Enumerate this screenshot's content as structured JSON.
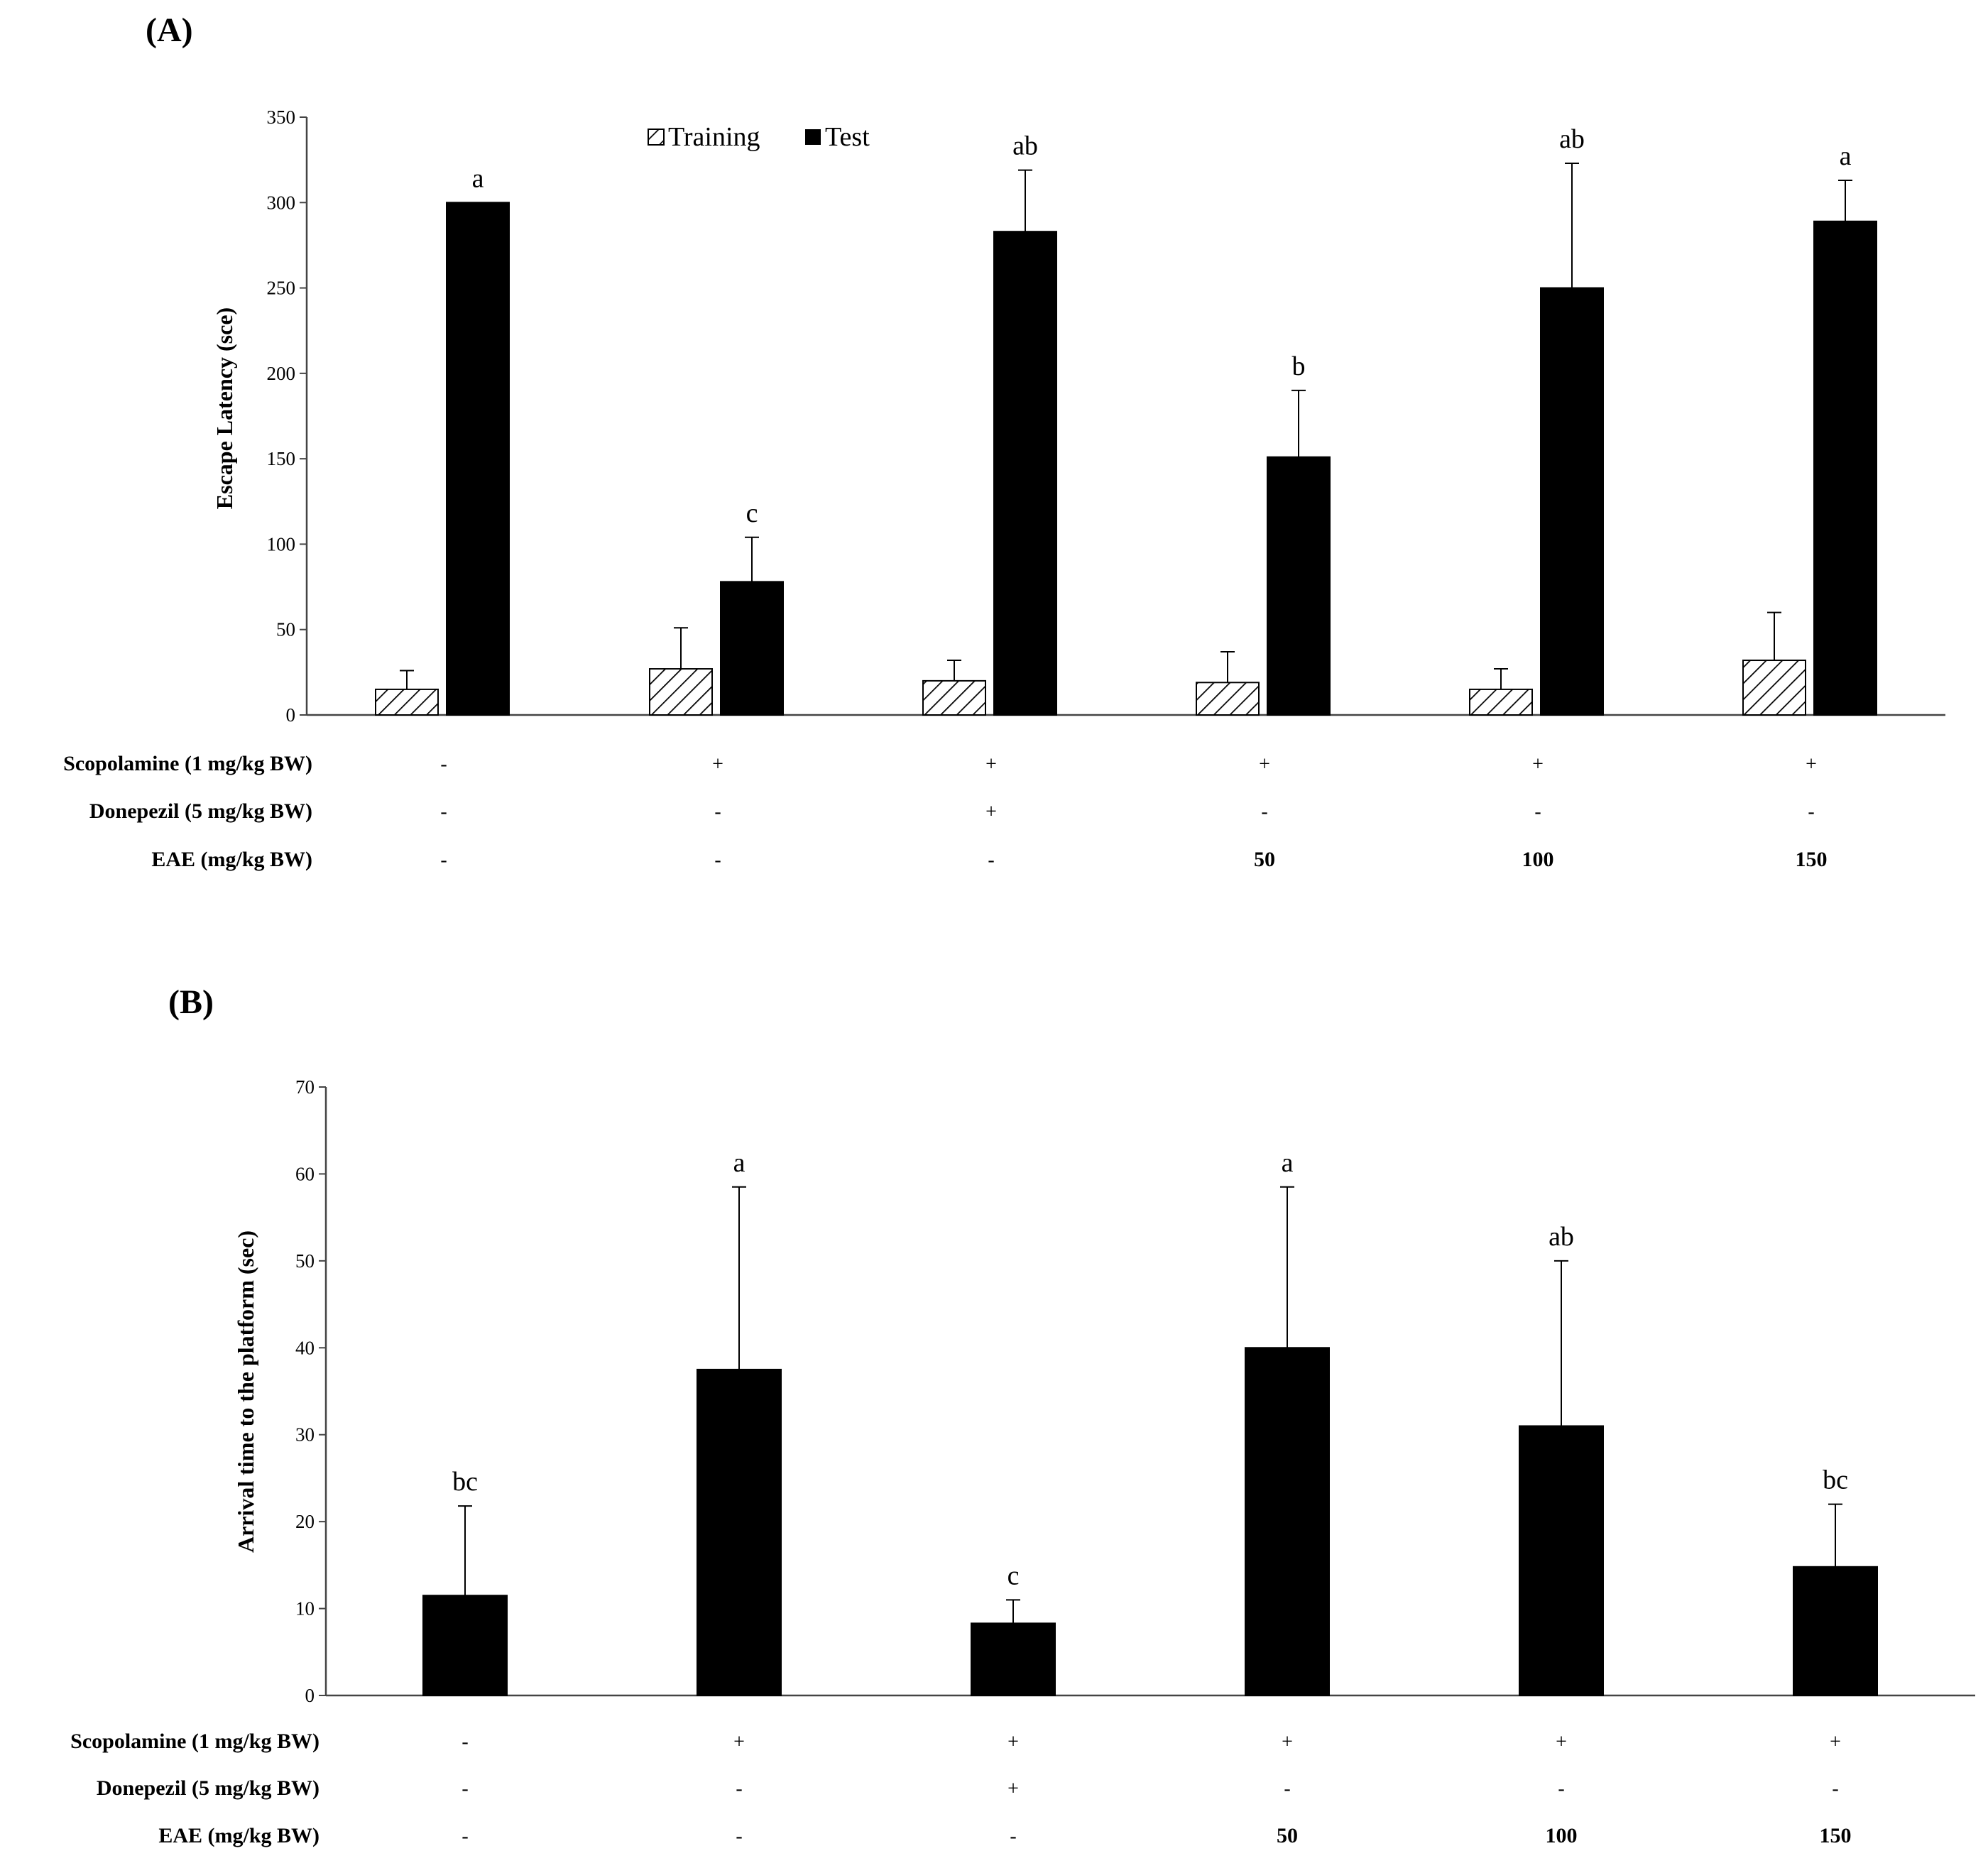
{
  "chart_data": [
    {
      "type": "bar",
      "panel_label": "(A)",
      "ylabel": "Escape Latency (sce)",
      "ylim": [
        0,
        350
      ],
      "yticks": [
        "0",
        "50",
        "100",
        "150",
        "200",
        "250",
        "300",
        "350"
      ],
      "legend": {
        "position": "top-center",
        "training": "Training",
        "test": "Test"
      },
      "series": [
        {
          "name": "Training",
          "pattern": "hatched",
          "values": [
            15,
            27,
            20,
            19,
            15,
            32
          ],
          "errors": [
            11,
            24,
            12,
            18,
            12,
            28
          ]
        },
        {
          "name": "Test",
          "pattern": "solid",
          "values": [
            300,
            78,
            283,
            151,
            250,
            289
          ],
          "errors": [
            0,
            26,
            36,
            39,
            73,
            24
          ]
        }
      ],
      "sig_labels": [
        "a",
        "c",
        "ab",
        "b",
        "ab",
        "a"
      ],
      "conditions": {
        "rows": [
          {
            "label": "Scopolamine (1 mg/kg BW)",
            "values": [
              "-",
              "+",
              "+",
              "+",
              "+",
              "+"
            ]
          },
          {
            "label": "Donepezil (5 mg/kg BW)",
            "values": [
              "-",
              "-",
              "+",
              "-",
              "-",
              "-"
            ]
          },
          {
            "label": "EAE (mg/kg BW)",
            "values": [
              "-",
              "-",
              "-",
              "50",
              "100",
              "150"
            ]
          }
        ]
      }
    },
    {
      "type": "bar",
      "panel_label": "(B)",
      "ylabel": "Arrival time to the platform (sec)",
      "ylim": [
        0,
        70
      ],
      "yticks": [
        "0",
        "10",
        "20",
        "30",
        "40",
        "50",
        "60",
        "70"
      ],
      "series": [
        {
          "name": "Arrival time",
          "pattern": "solid",
          "values": [
            11.5,
            37.5,
            8.3,
            40,
            31,
            14.8
          ],
          "errors": [
            10.3,
            21,
            2.7,
            18.5,
            19,
            7.2
          ]
        }
      ],
      "sig_labels": [
        "bc",
        "a",
        "c",
        "a",
        "ab",
        "bc"
      ],
      "conditions": {
        "rows": [
          {
            "label": "Scopolamine (1 mg/kg BW)",
            "values": [
              "-",
              "+",
              "+",
              "+",
              "+",
              "+"
            ]
          },
          {
            "label": "Donepezil (5 mg/kg BW)",
            "values": [
              "-",
              "-",
              "+",
              "-",
              "-",
              "-"
            ]
          },
          {
            "label": "EAE (mg/kg BW)",
            "values": [
              "-",
              "-",
              "-",
              "50",
              "100",
              "150"
            ]
          }
        ]
      }
    }
  ]
}
